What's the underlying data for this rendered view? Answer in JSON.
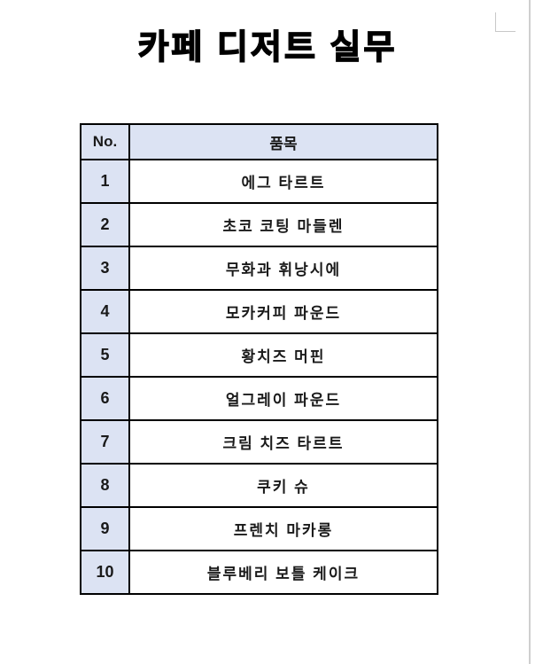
{
  "title": "카페 디저트 실무",
  "colors": {
    "header_background": "#dce3f3",
    "table_border": "#000000",
    "page_background": "#ffffff",
    "edge_line": "#cfcfcf"
  },
  "table": {
    "header": {
      "no": "No.",
      "item": "품목"
    },
    "rows": [
      {
        "no": "1",
        "item": "에그 타르트"
      },
      {
        "no": "2",
        "item": "초코 코팅 마들렌"
      },
      {
        "no": "3",
        "item": "무화과 휘낭시에"
      },
      {
        "no": "4",
        "item": "모카커피 파운드"
      },
      {
        "no": "5",
        "item": "황치즈 머핀"
      },
      {
        "no": "6",
        "item": "얼그레이 파운드"
      },
      {
        "no": "7",
        "item": "크림 치즈 타르트"
      },
      {
        "no": "8",
        "item": "쿠키 슈"
      },
      {
        "no": "9",
        "item": "프렌치 마카롱"
      },
      {
        "no": "10",
        "item": "블루베리 보틀 케이크"
      }
    ]
  }
}
